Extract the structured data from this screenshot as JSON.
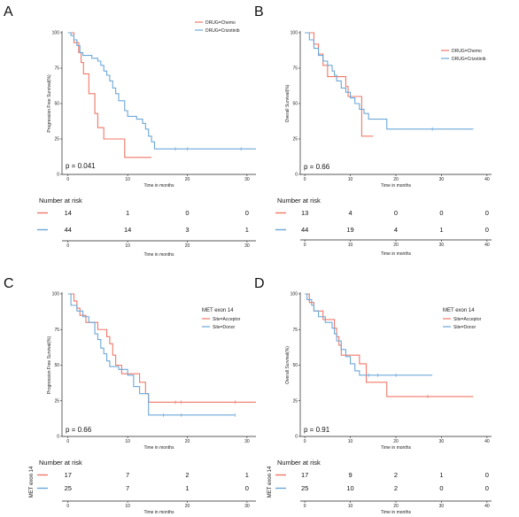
{
  "colors": {
    "red": "#f07868",
    "blue": "#6ca8d8",
    "axis": "#222222"
  },
  "chart_data": [
    {
      "panel": "A",
      "type": "line",
      "ylabel": "Progression Free Survival(%)",
      "xlabel": "Time in months",
      "yticks": [
        0,
        25,
        50,
        75,
        100
      ],
      "xticks": [
        0,
        10,
        20,
        30
      ],
      "xlim": [
        -1,
        31.5
      ],
      "ylim": [
        0,
        100
      ],
      "legend_title": "",
      "legend_position": "top-right",
      "series": [
        {
          "name": "DRUG=Chemo",
          "color": "red",
          "steps": [
            [
              0,
              100
            ],
            [
              1,
              93
            ],
            [
              1.8,
              86
            ],
            [
              2.2,
              79
            ],
            [
              2.6,
              71
            ],
            [
              3.5,
              57
            ],
            [
              4.5,
              43
            ],
            [
              5,
              33
            ],
            [
              6,
              25
            ],
            [
              9.5,
              12
            ],
            [
              14,
              12
            ]
          ],
          "censors": []
        },
        {
          "name": "DRUG=Crizotinib",
          "color": "blue",
          "steps": [
            [
              0,
              100
            ],
            [
              0.5,
              98
            ],
            [
              1,
              95
            ],
            [
              1.5,
              91
            ],
            [
              2,
              86
            ],
            [
              2.5,
              84
            ],
            [
              4,
              82
            ],
            [
              5,
              80
            ],
            [
              5.5,
              77
            ],
            [
              6,
              73
            ],
            [
              6.5,
              70
            ],
            [
              7,
              66
            ],
            [
              7.5,
              61
            ],
            [
              8,
              57
            ],
            [
              8.5,
              52
            ],
            [
              9.5,
              45
            ],
            [
              10,
              41
            ],
            [
              11.5,
              39
            ],
            [
              12.5,
              36
            ],
            [
              13,
              32
            ],
            [
              13.5,
              27
            ],
            [
              14,
              23
            ],
            [
              14.5,
              18
            ],
            [
              31.5,
              18
            ]
          ],
          "censors": [
            [
              18,
              18
            ],
            [
              20,
              18
            ],
            [
              29,
              18
            ]
          ]
        }
      ],
      "pvalue": "p = 0.041",
      "risk": {
        "title": "Number at risk",
        "ytitle": "",
        "xticks": [
          0,
          10,
          20,
          30
        ],
        "rows": [
          {
            "color": "red",
            "values": [
              "14",
              "1",
              "0",
              "0"
            ]
          },
          {
            "color": "blue",
            "values": [
              "44",
              "14",
              "3",
              "1"
            ]
          }
        ]
      }
    },
    {
      "panel": "B",
      "type": "line",
      "ylabel": "Overall Survival(%)",
      "xlabel": "Time in months",
      "yticks": [
        0,
        25,
        50,
        75,
        100
      ],
      "xticks": [
        0,
        10,
        20,
        30,
        40
      ],
      "xlim": [
        -1,
        41
      ],
      "ylim": [
        0,
        100
      ],
      "legend_title": "",
      "legend_position": "top-right",
      "series": [
        {
          "name": "DRUG=Chemo",
          "color": "red",
          "steps": [
            [
              0,
              100
            ],
            [
              2,
              92
            ],
            [
              3,
              85
            ],
            [
              4,
              77
            ],
            [
              5,
              69
            ],
            [
              9,
              62
            ],
            [
              9.5,
              55
            ],
            [
              12.5,
              27
            ],
            [
              15,
              27
            ]
          ],
          "censors": []
        },
        {
          "name": "DRUG=Crizotinib",
          "color": "blue",
          "steps": [
            [
              0,
              100
            ],
            [
              1,
              95
            ],
            [
              2,
              89
            ],
            [
              3,
              84
            ],
            [
              4,
              80
            ],
            [
              5,
              77
            ],
            [
              6,
              73
            ],
            [
              6.5,
              70
            ],
            [
              7,
              66
            ],
            [
              8,
              61
            ],
            [
              9,
              58
            ],
            [
              10,
              54
            ],
            [
              11,
              50
            ],
            [
              12,
              46
            ],
            [
              13,
              43
            ],
            [
              14,
              39
            ],
            [
              18,
              32
            ],
            [
              37,
              32
            ]
          ],
          "censors": [
            [
              28,
              32
            ]
          ]
        }
      ],
      "pvalue": "p = 0.66",
      "risk": {
        "title": "Number at risk",
        "ytitle": "",
        "xticks": [
          0,
          10,
          20,
          30,
          40
        ],
        "rows": [
          {
            "color": "red",
            "values": [
              "13",
              "4",
              "0",
              "0",
              "0"
            ]
          },
          {
            "color": "blue",
            "values": [
              "44",
              "19",
              "4",
              "1",
              "0"
            ]
          }
        ]
      }
    },
    {
      "panel": "C",
      "type": "line",
      "ylabel": "Progression Free Survival(%)",
      "xlabel": "Time in months",
      "yticks": [
        0,
        25,
        50,
        75,
        100
      ],
      "xticks": [
        0,
        10,
        20,
        30
      ],
      "xlim": [
        -1,
        31.5
      ],
      "ylim": [
        0,
        100
      ],
      "legend_title": "MET exon 14",
      "legend_position": "top-right",
      "series": [
        {
          "name": "Site=Acceptor",
          "color": "red",
          "steps": [
            [
              0,
              100
            ],
            [
              1,
              95
            ],
            [
              1.5,
              90
            ],
            [
              2,
              85
            ],
            [
              3,
              80
            ],
            [
              5,
              75
            ],
            [
              6.5,
              70
            ],
            [
              7,
              65
            ],
            [
              7.5,
              57
            ],
            [
              8,
              50
            ],
            [
              9,
              44
            ],
            [
              12,
              38
            ],
            [
              13,
              30
            ],
            [
              13.5,
              24
            ],
            [
              31.5,
              24
            ]
          ],
          "censors": [
            [
              18,
              24
            ],
            [
              19,
              24
            ],
            [
              28,
              24
            ]
          ]
        },
        {
          "name": "Site=Donor",
          "color": "blue",
          "steps": [
            [
              0,
              100
            ],
            [
              0.5,
              92
            ],
            [
              1.5,
              88
            ],
            [
              2.5,
              84
            ],
            [
              3.5,
              80
            ],
            [
              4.5,
              72
            ],
            [
              5,
              68
            ],
            [
              5.5,
              62
            ],
            [
              6,
              58
            ],
            [
              6.5,
              53
            ],
            [
              7,
              49
            ],
            [
              8.5,
              47
            ],
            [
              10,
              43
            ],
            [
              11,
              35
            ],
            [
              12,
              30
            ],
            [
              13.5,
              15
            ],
            [
              28,
              15
            ]
          ],
          "censors": [
            [
              16,
              15
            ],
            [
              19,
              15
            ],
            [
              28,
              15
            ]
          ]
        }
      ],
      "pvalue": "p = 0.66",
      "risk": {
        "title": "Number at risk",
        "ytitle": "MET exon 14",
        "xticks": [
          0,
          10,
          20,
          30
        ],
        "rows": [
          {
            "color": "red",
            "values": [
              "17",
              "7",
              "2",
              "1"
            ]
          },
          {
            "color": "blue",
            "values": [
              "25",
              "7",
              "1",
              "0"
            ]
          }
        ]
      }
    },
    {
      "panel": "D",
      "type": "line",
      "ylabel": "Overall Survival(%)",
      "xlabel": "Time in months",
      "yticks": [
        0,
        25,
        50,
        75,
        100
      ],
      "xticks": [
        0,
        10,
        20,
        30,
        40
      ],
      "xlim": [
        -1,
        41
      ],
      "ylim": [
        0,
        100
      ],
      "legend_title": "MET exon 14",
      "legend_position": "top-right",
      "series": [
        {
          "name": "Site=Acceptor",
          "color": "red",
          "steps": [
            [
              0,
              100
            ],
            [
              1,
              94
            ],
            [
              2,
              88
            ],
            [
              4,
              82
            ],
            [
              6.5,
              76
            ],
            [
              7,
              70
            ],
            [
              7.5,
              64
            ],
            [
              8,
              57
            ],
            [
              12,
              51
            ],
            [
              13.5,
              38
            ],
            [
              18,
              28
            ],
            [
              37,
              28
            ]
          ],
          "censors": [
            [
              27,
              28
            ]
          ]
        },
        {
          "name": "Site=Donor",
          "color": "blue",
          "steps": [
            [
              0,
              100
            ],
            [
              0.5,
              96
            ],
            [
              1.5,
              92
            ],
            [
              2,
              88
            ],
            [
              3,
              84
            ],
            [
              4.5,
              80
            ],
            [
              6,
              76
            ],
            [
              6.5,
              72
            ],
            [
              7,
              67
            ],
            [
              8,
              61
            ],
            [
              9,
              56
            ],
            [
              10,
              51
            ],
            [
              11,
              46
            ],
            [
              12,
              43
            ],
            [
              28,
              43
            ]
          ],
          "censors": [
            [
              14,
              43
            ],
            [
              16,
              43
            ],
            [
              20,
              43
            ]
          ]
        }
      ],
      "pvalue": "p = 0.91",
      "risk": {
        "title": "Number at risk",
        "ytitle": "MET exon 14",
        "xticks": [
          0,
          10,
          20,
          30,
          40
        ],
        "rows": [
          {
            "color": "red",
            "values": [
              "17",
              "9",
              "2",
              "1",
              "0"
            ]
          },
          {
            "color": "blue",
            "values": [
              "25",
              "10",
              "2",
              "0",
              "0"
            ]
          }
        ]
      }
    }
  ]
}
